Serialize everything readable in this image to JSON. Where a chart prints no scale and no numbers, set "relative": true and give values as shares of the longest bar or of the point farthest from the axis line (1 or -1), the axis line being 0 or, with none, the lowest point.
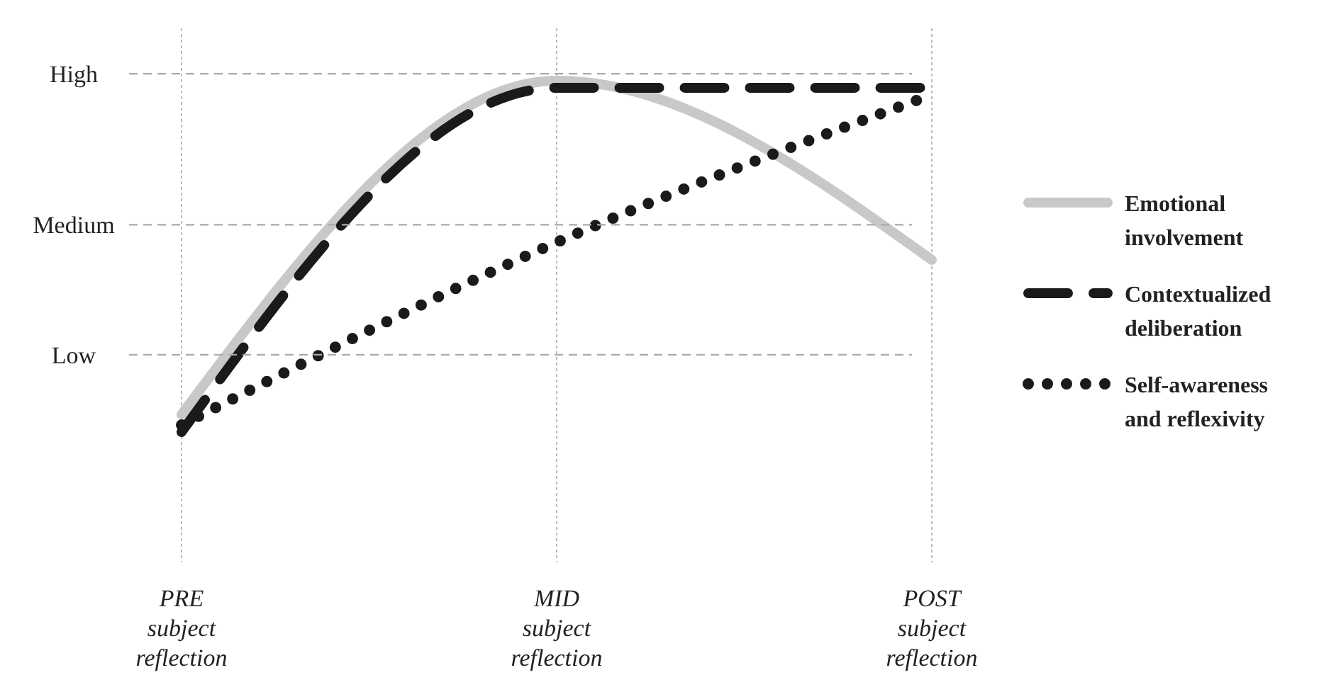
{
  "chart_data": {
    "type": "line",
    "relative": true,
    "categories": [
      "PRE\nsubject\nreflection",
      "MID\nsubject\nreflection",
      "POST\nsubject\nreflection"
    ],
    "grid": "x",
    "legend": "right",
    "ref_lines": [
      {
        "axis": "y",
        "value": 0.22,
        "label": "Low"
      },
      {
        "axis": "y",
        "value": 0.59,
        "label": "Medium"
      },
      {
        "axis": "y",
        "value": 1.02,
        "label": "High"
      }
    ],
    "series": [
      {
        "name": "Emotional involvement",
        "color": "#c8c8c8",
        "line_style": "solid",
        "values": [
          0.05,
          1,
          0.49
        ]
      },
      {
        "name": "Contextualized deliberation",
        "color": "#1a1a1a",
        "line_style": "dashed",
        "values": [
          0,
          0.98,
          0.98
        ]
      },
      {
        "name": "Self-awareness and reflexivity",
        "color": "#1a1a1a",
        "line_style": "dotted",
        "values": [
          0.02,
          0.54,
          0.96
        ]
      }
    ]
  }
}
